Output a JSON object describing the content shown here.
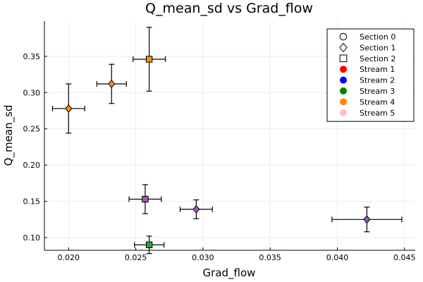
{
  "chart_data": {
    "type": "scatter",
    "title": "Q_mean_sd vs Grad_flow",
    "xlabel": "Grad_flow",
    "ylabel": "Q_mean_sd",
    "xlim": [
      0.0182,
      0.0458
    ],
    "ylim": [
      0.0825,
      0.3985
    ],
    "xticks": [
      0.02,
      0.025,
      0.03,
      0.035,
      0.04,
      0.045
    ],
    "xtick_labels": [
      "0.020",
      "0.025",
      "0.030",
      "0.035",
      "0.040",
      "0.045"
    ],
    "yticks": [
      0.1,
      0.15,
      0.2,
      0.25,
      0.3,
      0.35
    ],
    "ytick_labels": [
      "0.10",
      "0.15",
      "0.20",
      "0.25",
      "0.30",
      "0.35"
    ],
    "grid": true,
    "legend_position": "top-right",
    "legend": [
      {
        "label": "Section 0",
        "marker": "circle",
        "color": "#ffffff"
      },
      {
        "label": "Section 1",
        "marker": "diamond",
        "color": "#ffffff"
      },
      {
        "label": "Section 2",
        "marker": "square",
        "color": "#ffffff"
      },
      {
        "label": "Stream 1",
        "marker": "circle",
        "color": "#ff0000"
      },
      {
        "label": "Stream 2",
        "marker": "circle",
        "color": "#0000ff"
      },
      {
        "label": "Stream 3",
        "marker": "circle",
        "color": "#008000"
      },
      {
        "label": "Stream 4",
        "marker": "circle",
        "color": "#ff8c00"
      },
      {
        "label": "Stream 5",
        "marker": "circle",
        "color": "#ffc0cb"
      }
    ],
    "points": [
      {
        "x": 0.02,
        "y": 0.278,
        "x_err": 0.0012,
        "y_err": 0.034,
        "marker": "diamond",
        "color": "#ff8c00"
      },
      {
        "x": 0.0232,
        "y": 0.312,
        "x_err": 0.0011,
        "y_err": 0.027,
        "marker": "diamond",
        "color": "#ff8c00"
      },
      {
        "x": 0.026,
        "y": 0.346,
        "x_err": 0.0012,
        "y_err": 0.044,
        "marker": "square",
        "color": "#ff8c00"
      },
      {
        "x": 0.0257,
        "y": 0.153,
        "x_err": 0.0012,
        "y_err": 0.02,
        "marker": "square",
        "color": "#9b59b6"
      },
      {
        "x": 0.0295,
        "y": 0.139,
        "x_err": 0.0012,
        "y_err": 0.013,
        "marker": "diamond",
        "color": "#9b59b6"
      },
      {
        "x": 0.0422,
        "y": 0.125,
        "x_err": 0.0026,
        "y_err": 0.017,
        "marker": "diamond",
        "color": "#9b59b6"
      },
      {
        "x": 0.026,
        "y": 0.09,
        "x_err": 0.0011,
        "y_err": 0.012,
        "marker": "square",
        "color": "#3a9a3a"
      }
    ]
  }
}
